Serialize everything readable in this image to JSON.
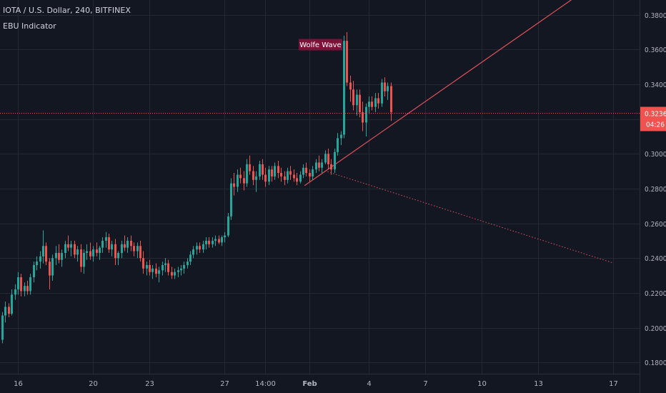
{
  "header": {
    "symbol_line": "IOTA / U.S. Dollar, 240, BITFINEX",
    "indicator_line": "EBU Indicator"
  },
  "chart_data": {
    "type": "candlestick",
    "title": "IOTA / U.S. Dollar, 240, BITFINEX",
    "ylim": [
      0.1735,
      0.3885
    ],
    "y_ticks": [
      "0.3800",
      "0.3600",
      "0.3400",
      "0.3200",
      "0.3000",
      "0.2800",
      "0.2600",
      "0.2400",
      "0.2200",
      "0.2000",
      "0.1800"
    ],
    "x_ticks": [
      {
        "label": "16",
        "bar": 5,
        "bold": false
      },
      {
        "label": "20",
        "bar": 29,
        "bold": false
      },
      {
        "label": "23",
        "bar": 47,
        "bold": false
      },
      {
        "label": "27",
        "bar": 71,
        "bold": false
      },
      {
        "label": "14:00",
        "bar": 84,
        "bold": false
      },
      {
        "label": "Feb",
        "bar": 98,
        "bold": true
      },
      {
        "label": "4",
        "bar": 117,
        "bold": false
      },
      {
        "label": "7",
        "bar": 135,
        "bold": false
      },
      {
        "label": "10",
        "bar": 153,
        "bold": false
      },
      {
        "label": "13",
        "bar": 171,
        "bold": false
      },
      {
        "label": "17",
        "bar": 195,
        "bold": false
      }
    ],
    "last_price": {
      "label": "0.3236",
      "value": 0.3236,
      "countdown": "04:26"
    },
    "annotation": {
      "label": "Wolfe Wave",
      "bar": 109,
      "value": 0.3628
    },
    "trendlines": [
      {
        "from_bar": 96.5,
        "from_value": 0.2817,
        "to_bar": 187,
        "to_value": 0.3953,
        "style": "solid"
      },
      {
        "from_bar": 103,
        "from_value": 0.2902,
        "to_bar": 195,
        "to_value": 0.2372,
        "style": "dotted"
      }
    ],
    "colors": {
      "up": "#26a69a",
      "down": "#ef5350",
      "background": "#131722",
      "grid": "#242835",
      "trendline": "#e0505a",
      "price_line": "#ef5350",
      "label_bg": "#7d1238"
    },
    "candles": [
      [
        0.193,
        0.209,
        0.191,
        0.207
      ],
      [
        0.207,
        0.215,
        0.203,
        0.212
      ],
      [
        0.212,
        0.214,
        0.206,
        0.208
      ],
      [
        0.208,
        0.222,
        0.207,
        0.219
      ],
      [
        0.219,
        0.225,
        0.216,
        0.222
      ],
      [
        0.222,
        0.232,
        0.219,
        0.229
      ],
      [
        0.229,
        0.231,
        0.218,
        0.221
      ],
      [
        0.221,
        0.226,
        0.218,
        0.224
      ],
      [
        0.224,
        0.227,
        0.219,
        0.221
      ],
      [
        0.221,
        0.231,
        0.219,
        0.229
      ],
      [
        0.229,
        0.238,
        0.226,
        0.236
      ],
      [
        0.236,
        0.241,
        0.233,
        0.238
      ],
      [
        0.238,
        0.244,
        0.234,
        0.241
      ],
      [
        0.241,
        0.256,
        0.237,
        0.247
      ],
      [
        0.247,
        0.249,
        0.236,
        0.238
      ],
      [
        0.238,
        0.24,
        0.222,
        0.23
      ],
      [
        0.23,
        0.242,
        0.227,
        0.24
      ],
      [
        0.24,
        0.247,
        0.236,
        0.243
      ],
      [
        0.243,
        0.248,
        0.237,
        0.239
      ],
      [
        0.239,
        0.245,
        0.235,
        0.243
      ],
      [
        0.243,
        0.25,
        0.24,
        0.248
      ],
      [
        0.248,
        0.253,
        0.244,
        0.246
      ],
      [
        0.246,
        0.25,
        0.241,
        0.248
      ],
      [
        0.248,
        0.25,
        0.24,
        0.242
      ],
      [
        0.242,
        0.247,
        0.238,
        0.245
      ],
      [
        0.245,
        0.248,
        0.232,
        0.235
      ],
      [
        0.235,
        0.245,
        0.231,
        0.243
      ],
      [
        0.243,
        0.248,
        0.239,
        0.244
      ],
      [
        0.244,
        0.249,
        0.239,
        0.241
      ],
      [
        0.241,
        0.247,
        0.238,
        0.245
      ],
      [
        0.245,
        0.249,
        0.241,
        0.243
      ],
      [
        0.243,
        0.247,
        0.239,
        0.246
      ],
      [
        0.246,
        0.252,
        0.243,
        0.25
      ],
      [
        0.25,
        0.255,
        0.246,
        0.252
      ],
      [
        0.252,
        0.254,
        0.243,
        0.245
      ],
      [
        0.245,
        0.25,
        0.241,
        0.248
      ],
      [
        0.248,
        0.251,
        0.236,
        0.24
      ],
      [
        0.24,
        0.244,
        0.236,
        0.243
      ],
      [
        0.243,
        0.25,
        0.24,
        0.248
      ],
      [
        0.248,
        0.253,
        0.244,
        0.246
      ],
      [
        0.246,
        0.252,
        0.243,
        0.25
      ],
      [
        0.25,
        0.253,
        0.244,
        0.247
      ],
      [
        0.247,
        0.249,
        0.241,
        0.244
      ],
      [
        0.244,
        0.249,
        0.24,
        0.247
      ],
      [
        0.247,
        0.25,
        0.238,
        0.24
      ],
      [
        0.24,
        0.244,
        0.231,
        0.234
      ],
      [
        0.234,
        0.238,
        0.23,
        0.236
      ],
      [
        0.236,
        0.239,
        0.23,
        0.232
      ],
      [
        0.232,
        0.236,
        0.228,
        0.234
      ],
      [
        0.234,
        0.237,
        0.229,
        0.231
      ],
      [
        0.231,
        0.235,
        0.226,
        0.233
      ],
      [
        0.233,
        0.238,
        0.23,
        0.236
      ],
      [
        0.236,
        0.24,
        0.232,
        0.237
      ],
      [
        0.237,
        0.239,
        0.23,
        0.232
      ],
      [
        0.232,
        0.235,
        0.228,
        0.23
      ],
      [
        0.23,
        0.234,
        0.228,
        0.232
      ],
      [
        0.232,
        0.235,
        0.229,
        0.233
      ],
      [
        0.233,
        0.236,
        0.23,
        0.234
      ],
      [
        0.234,
        0.238,
        0.231,
        0.236
      ],
      [
        0.236,
        0.24,
        0.234,
        0.238
      ],
      [
        0.238,
        0.244,
        0.236,
        0.242
      ],
      [
        0.242,
        0.247,
        0.24,
        0.245
      ],
      [
        0.245,
        0.249,
        0.242,
        0.247
      ],
      [
        0.247,
        0.249,
        0.243,
        0.245
      ],
      [
        0.245,
        0.25,
        0.243,
        0.248
      ],
      [
        0.248,
        0.252,
        0.245,
        0.25
      ],
      [
        0.25,
        0.252,
        0.246,
        0.248
      ],
      [
        0.248,
        0.252,
        0.246,
        0.25
      ],
      [
        0.25,
        0.253,
        0.247,
        0.251
      ],
      [
        0.251,
        0.253,
        0.248,
        0.249
      ],
      [
        0.249,
        0.253,
        0.247,
        0.252
      ],
      [
        0.252,
        0.255,
        0.249,
        0.253
      ],
      [
        0.253,
        0.266,
        0.252,
        0.264
      ],
      [
        0.264,
        0.286,
        0.262,
        0.283
      ],
      [
        0.283,
        0.289,
        0.276,
        0.281
      ],
      [
        0.281,
        0.291,
        0.278,
        0.288
      ],
      [
        0.288,
        0.292,
        0.283,
        0.286
      ],
      [
        0.286,
        0.29,
        0.279,
        0.283
      ],
      [
        0.283,
        0.297,
        0.281,
        0.294
      ],
      [
        0.294,
        0.299,
        0.288,
        0.29
      ],
      [
        0.29,
        0.293,
        0.282,
        0.285
      ],
      [
        0.285,
        0.29,
        0.278,
        0.287
      ],
      [
        0.287,
        0.296,
        0.285,
        0.294
      ],
      [
        0.294,
        0.297,
        0.285,
        0.288
      ],
      [
        0.288,
        0.292,
        0.281,
        0.284
      ],
      [
        0.284,
        0.293,
        0.282,
        0.291
      ],
      [
        0.291,
        0.293,
        0.284,
        0.287
      ],
      [
        0.287,
        0.295,
        0.285,
        0.293
      ],
      [
        0.293,
        0.296,
        0.286,
        0.289
      ],
      [
        0.289,
        0.292,
        0.284,
        0.287
      ],
      [
        0.287,
        0.29,
        0.282,
        0.285
      ],
      [
        0.285,
        0.292,
        0.283,
        0.29
      ],
      [
        0.29,
        0.293,
        0.285,
        0.288
      ],
      [
        0.288,
        0.291,
        0.284,
        0.286
      ],
      [
        0.286,
        0.289,
        0.282,
        0.284
      ],
      [
        0.284,
        0.29,
        0.283,
        0.288
      ],
      [
        0.288,
        0.294,
        0.286,
        0.292
      ],
      [
        0.292,
        0.295,
        0.287,
        0.289
      ],
      [
        0.289,
        0.291,
        0.284,
        0.287
      ],
      [
        0.287,
        0.293,
        0.285,
        0.291
      ],
      [
        0.291,
        0.297,
        0.289,
        0.295
      ],
      [
        0.295,
        0.299,
        0.29,
        0.292
      ],
      [
        0.292,
        0.297,
        0.289,
        0.295
      ],
      [
        0.295,
        0.302,
        0.294,
        0.3
      ],
      [
        0.3,
        0.303,
        0.291,
        0.294
      ],
      [
        0.294,
        0.297,
        0.288,
        0.291
      ],
      [
        0.291,
        0.303,
        0.289,
        0.301
      ],
      [
        0.301,
        0.312,
        0.299,
        0.309
      ],
      [
        0.309,
        0.313,
        0.305,
        0.311
      ],
      [
        0.311,
        0.368,
        0.309,
        0.365
      ],
      [
        0.365,
        0.37,
        0.339,
        0.341
      ],
      [
        0.341,
        0.345,
        0.33,
        0.337
      ],
      [
        0.337,
        0.342,
        0.325,
        0.328
      ],
      [
        0.328,
        0.337,
        0.322,
        0.334
      ],
      [
        0.334,
        0.337,
        0.321,
        0.324
      ],
      [
        0.324,
        0.33,
        0.313,
        0.318
      ],
      [
        0.318,
        0.329,
        0.31,
        0.327
      ],
      [
        0.327,
        0.333,
        0.323,
        0.33
      ],
      [
        0.33,
        0.333,
        0.325,
        0.327
      ],
      [
        0.327,
        0.335,
        0.324,
        0.332
      ],
      [
        0.332,
        0.335,
        0.326,
        0.329
      ],
      [
        0.329,
        0.343,
        0.327,
        0.341
      ],
      [
        0.341,
        0.344,
        0.333,
        0.336
      ],
      [
        0.336,
        0.341,
        0.331,
        0.339
      ],
      [
        0.339,
        0.341,
        0.319,
        0.324
      ]
    ]
  }
}
